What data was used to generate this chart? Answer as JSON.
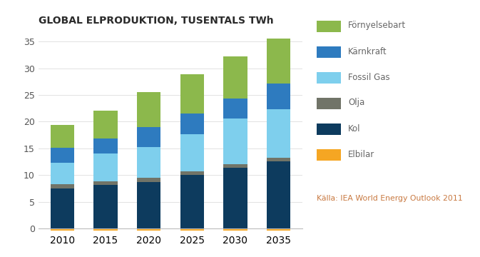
{
  "title": "GLOBAL ELPRODUKTION, TUSENTALS TWh",
  "years": [
    2010,
    2015,
    2020,
    2025,
    2030,
    2035
  ],
  "series": {
    "Elbilar": [
      0.4,
      0.4,
      0.4,
      0.4,
      0.4,
      0.4
    ],
    "Kol": [
      7.5,
      8.2,
      8.7,
      10.1,
      11.4,
      12.6
    ],
    "Olja": [
      0.8,
      0.6,
      0.8,
      0.6,
      0.7,
      0.7
    ],
    "Fossil Gas": [
      4.0,
      5.2,
      5.7,
      7.0,
      8.5,
      9.0
    ],
    "Kärnkraft": [
      2.8,
      2.8,
      3.8,
      3.8,
      3.8,
      4.8
    ],
    "Förnyelsebart": [
      4.3,
      5.3,
      6.5,
      7.4,
      7.8,
      8.5
    ]
  },
  "colors": {
    "Elbilar": "#F5A623",
    "Kol": "#0D3B5E",
    "Olja": "#717468",
    "Fossil Gas": "#7ECFED",
    "Kärnkraft": "#2E7BBF",
    "Förnyelsebart": "#8CB84C"
  },
  "source": "Källa: IEA World Energy Outlook 2011",
  "ylim": [
    -0.5,
    37
  ],
  "yticks": [
    0,
    5,
    10,
    15,
    20,
    25,
    30,
    35
  ],
  "background_color": "#FFFFFF",
  "title_color": "#2B2B2B",
  "source_color": "#C87941",
  "legend_text_color": "#666666"
}
